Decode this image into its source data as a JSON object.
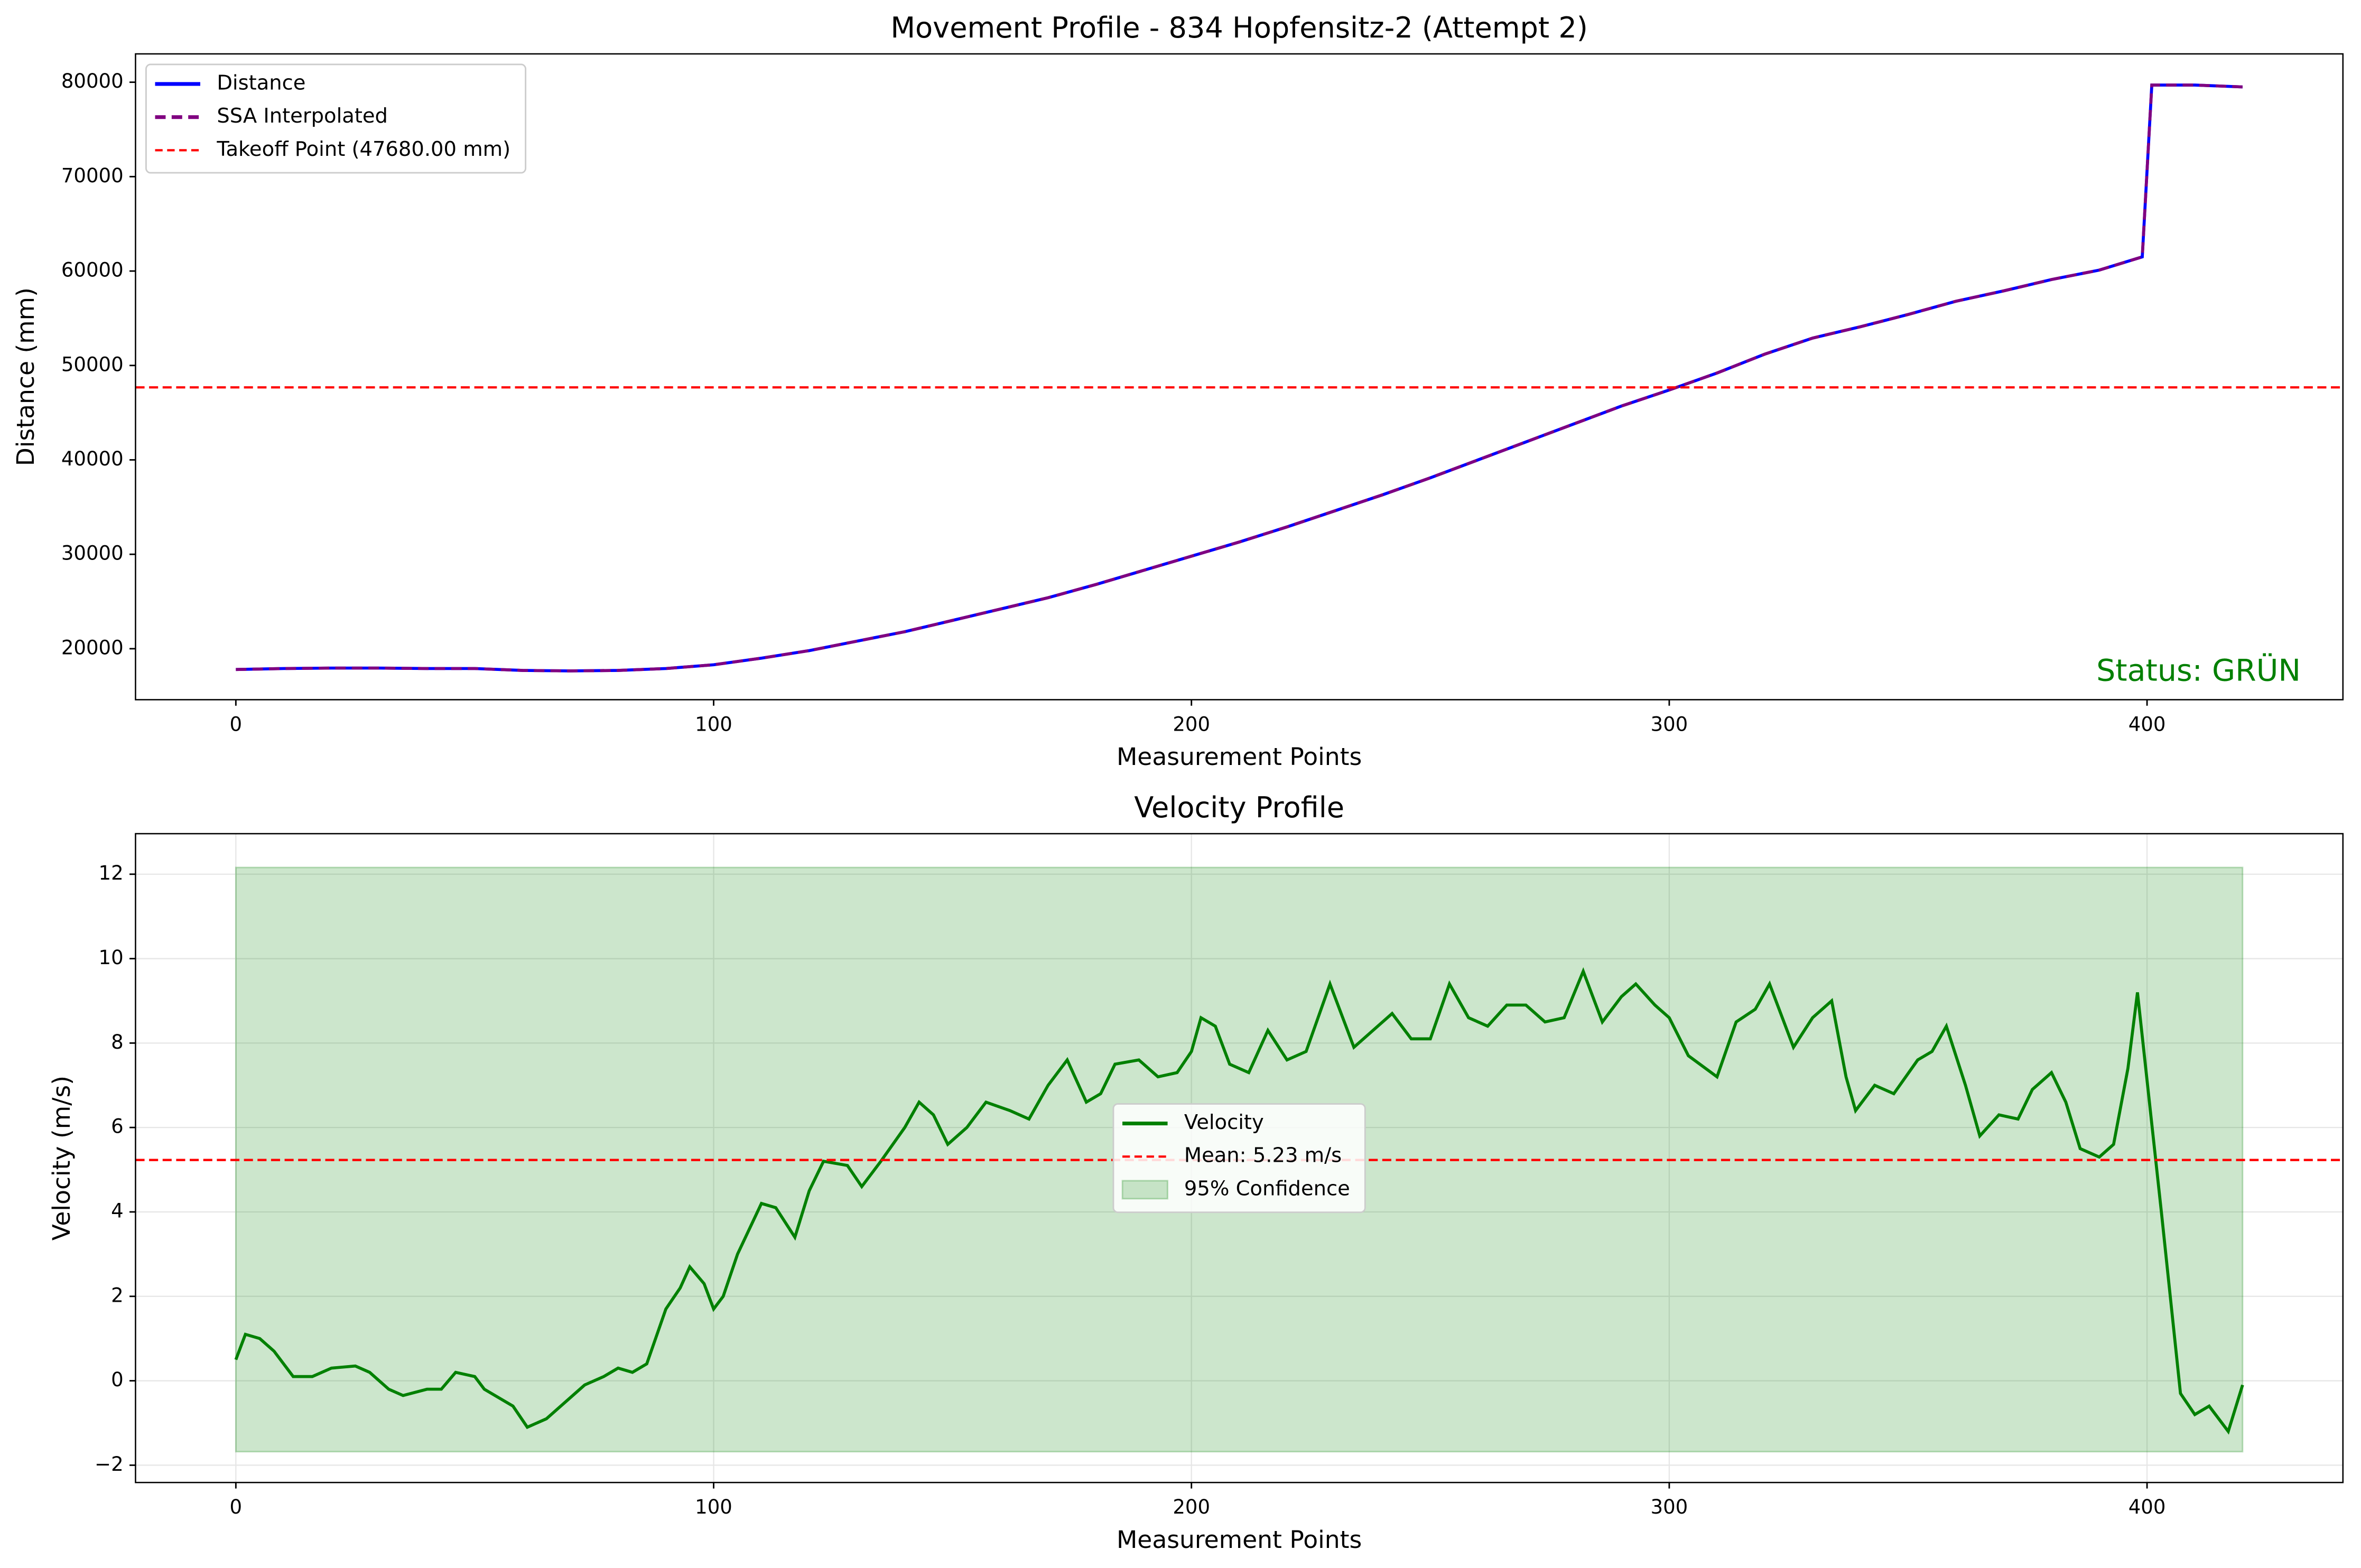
{
  "chart_data": [
    {
      "type": "line",
      "title": "Movement Profile - 834 Hopfensitz-2 (Attempt 2)",
      "xlabel": "Measurement Points",
      "ylabel": "Distance (mm)",
      "x": [
        0,
        10,
        20,
        30,
        40,
        50,
        60,
        70,
        80,
        90,
        100,
        110,
        120,
        130,
        140,
        150,
        160,
        170,
        180,
        190,
        200,
        210,
        220,
        230,
        240,
        250,
        260,
        270,
        280,
        290,
        300,
        310,
        320,
        330,
        340,
        350,
        360,
        370,
        380,
        390,
        399,
        401,
        410,
        420
      ],
      "series": [
        {
          "name": "Distance",
          "color": "#0000ff",
          "linestyle": "solid",
          "values": [
            17800,
            17900,
            17950,
            17950,
            17900,
            17900,
            17700,
            17650,
            17700,
            17900,
            18300,
            19000,
            19800,
            20800,
            21800,
            23000,
            24200,
            25400,
            26800,
            28300,
            29800,
            31300,
            32900,
            34600,
            36300,
            38100,
            40000,
            41900,
            43800,
            45700,
            47400,
            49200,
            51200,
            52900,
            54100,
            55400,
            56800,
            57900,
            59100,
            60100,
            61500,
            79700,
            79700,
            79500
          ]
        },
        {
          "name": "SSA Interpolated",
          "color": "#800080",
          "linestyle": "dashed",
          "values": [
            17800,
            17900,
            17950,
            17950,
            17900,
            17900,
            17700,
            17650,
            17700,
            17900,
            18300,
            19000,
            19800,
            20800,
            21800,
            23000,
            24200,
            25400,
            26800,
            28300,
            29800,
            31300,
            32900,
            34600,
            36300,
            38100,
            40000,
            41900,
            43800,
            45700,
            47400,
            49200,
            51200,
            52900,
            54100,
            55400,
            56800,
            57900,
            59100,
            60100,
            61500,
            79700,
            79700,
            79500
          ]
        }
      ],
      "reference_line": {
        "label": "Takeoff Point (47680.00 mm)",
        "value": 47680,
        "color": "#ff0000"
      },
      "annotation": {
        "text": "Status: GRÜN",
        "color": "#008000"
      },
      "xlim": [
        -21,
        441
      ],
      "xticks": [
        0,
        100,
        200,
        300,
        400
      ],
      "ylim": [
        14600,
        83000
      ],
      "yticks": [
        20000,
        30000,
        40000,
        50000,
        60000,
        70000,
        80000
      ],
      "grid": false,
      "legend": "upper left"
    },
    {
      "type": "line",
      "title": "Velocity Profile",
      "xlabel": "Measurement Points",
      "ylabel": "Velocity (m/s)",
      "x": [
        0,
        2,
        5,
        8,
        12,
        16,
        20,
        25,
        28,
        32,
        35,
        40,
        43,
        46,
        50,
        52,
        55,
        58,
        61,
        65,
        70,
        73,
        77,
        80,
        83,
        86,
        90,
        93,
        95,
        98,
        100,
        102,
        105,
        110,
        113,
        117,
        120,
        123,
        128,
        131,
        135,
        140,
        143,
        146,
        149,
        153,
        157,
        162,
        166,
        170,
        174,
        178,
        181,
        184,
        189,
        193,
        197,
        200,
        202,
        205,
        208,
        212,
        216,
        220,
        224,
        229,
        234,
        238,
        242,
        246,
        250,
        254,
        258,
        262,
        266,
        270,
        274,
        278,
        282,
        286,
        290,
        293,
        297,
        300,
        304,
        310,
        314,
        318,
        321,
        326,
        330,
        334,
        337,
        339,
        343,
        347,
        352,
        355,
        358,
        362,
        365,
        369,
        373,
        376,
        380,
        383,
        386,
        390,
        393,
        396,
        398,
        403,
        407,
        410,
        413,
        417,
        420
      ],
      "series": [
        {
          "name": "Velocity",
          "color": "#008000",
          "linestyle": "solid",
          "values": [
            0.5,
            1.1,
            1.0,
            0.7,
            0.1,
            0.1,
            0.3,
            0.35,
            0.2,
            -0.2,
            -0.35,
            -0.2,
            -0.2,
            0.2,
            0.1,
            -0.2,
            -0.4,
            -0.6,
            -1.1,
            -0.9,
            -0.4,
            -0.1,
            0.1,
            0.3,
            0.2,
            0.4,
            1.7,
            2.2,
            2.7,
            2.3,
            1.7,
            2.0,
            3.0,
            4.2,
            4.1,
            3.4,
            4.5,
            5.2,
            5.1,
            4.6,
            5.2,
            6.0,
            6.6,
            6.3,
            5.6,
            6.0,
            6.6,
            6.4,
            6.2,
            7.0,
            7.6,
            6.6,
            6.8,
            7.5,
            7.6,
            7.2,
            7.3,
            7.8,
            8.6,
            8.4,
            7.5,
            7.3,
            8.3,
            7.6,
            7.8,
            9.4,
            7.9,
            8.3,
            8.7,
            8.1,
            8.1,
            9.4,
            8.6,
            8.4,
            8.9,
            8.9,
            8.5,
            8.6,
            9.7,
            8.5,
            9.1,
            9.4,
            8.9,
            8.6,
            7.7,
            7.2,
            8.5,
            8.8,
            9.4,
            7.9,
            8.6,
            9.0,
            7.2,
            6.4,
            7.0,
            6.8,
            7.6,
            7.8,
            8.4,
            7.0,
            5.8,
            6.3,
            6.2,
            6.9,
            7.3,
            6.6,
            5.5,
            5.3,
            5.6,
            7.4,
            9.2,
            4.0,
            -0.3,
            -0.8,
            -0.6,
            -1.2,
            -0.1
          ]
        }
      ],
      "reference_line": {
        "label": "Mean: 5.23 m/s",
        "value": 5.23,
        "color": "#ff0000"
      },
      "band": {
        "label": "95% Confidence",
        "x": [
          0,
          420
        ],
        "y1": -1.68,
        "y2": 12.16,
        "color": "#008000"
      },
      "xlim": [
        -21,
        441
      ],
      "xticks": [
        0,
        100,
        200,
        300,
        400
      ],
      "ylim": [
        -2.41,
        12.96
      ],
      "yticks": [
        {
          "value": -2,
          "label": "−2"
        },
        0,
        2,
        4,
        6,
        8,
        10,
        12
      ],
      "grid": true,
      "legend": "center"
    }
  ]
}
